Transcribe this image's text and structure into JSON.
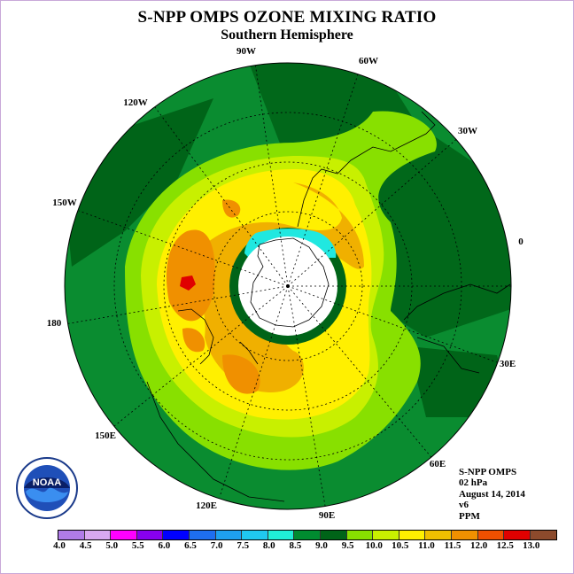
{
  "title": "S-NPP OMPS OZONE MIXING RATIO",
  "subtitle": "Southern Hemisphere",
  "longitude_labels": [
    "90W",
    "60W",
    "30W",
    "0",
    "30E",
    "60E",
    "90E",
    "120E",
    "150E",
    "180",
    "150W",
    "120W"
  ],
  "info": {
    "instrument": "S-NPP OMPS",
    "pressure": "02 hPa",
    "date": "August 14, 2014",
    "version": "v6",
    "units": "PPM"
  },
  "logo_text": "NOAA",
  "colorbar": {
    "ticks": [
      "4.0",
      "4.5",
      "5.0",
      "5.5",
      "6.0",
      "6.5",
      "7.0",
      "7.5",
      "8.0",
      "8.5",
      "9.0",
      "9.5",
      "10.0",
      "10.5",
      "11.0",
      "11.5",
      "12.0",
      "12.5",
      "13.0"
    ],
    "colors": [
      "#b07ce8",
      "#d8a8f0",
      "#ff00ff",
      "#8800ee",
      "#0000ff",
      "#1e6ef0",
      "#1ea0f0",
      "#20c8f0",
      "#20f0d8",
      "#008c30",
      "#006418",
      "#88e000",
      "#c8f000",
      "#fff000",
      "#f0c000",
      "#f09000",
      "#f05000",
      "#e00000",
      "#8c4a2c"
    ]
  },
  "colors": {
    "outer": "#0a8c30",
    "deep_green": "#006418",
    "light_green": "#88e000",
    "yellow_green": "#c8f000",
    "yellow": "#fff000",
    "orange": "#f0b000",
    "dark_orange": "#f09000",
    "red": "#e00000",
    "cyan": "#20e8e0"
  }
}
